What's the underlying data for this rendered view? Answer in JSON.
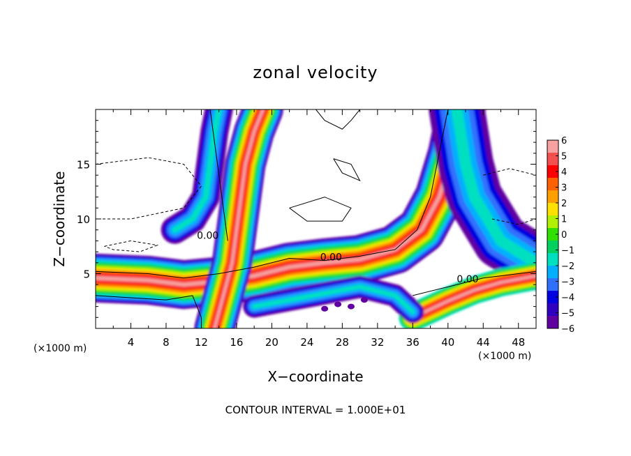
{
  "chart_data": {
    "type": "heatmap",
    "title": "zonal velocity",
    "xlabel": "X−coordinate",
    "ylabel": "Z−coordinate",
    "x_unit_label_left": "(×1000 m)",
    "x_unit_label_right": "(×1000 m)",
    "x_ticks": [
      4,
      8,
      12,
      16,
      20,
      24,
      28,
      32,
      36,
      40,
      44,
      48
    ],
    "y_ticks": [
      5,
      10,
      15
    ],
    "xlim": [
      0,
      50
    ],
    "ylim": [
      0,
      20
    ],
    "colorbar": {
      "ticks": [
        "6",
        "5",
        "4",
        "3",
        "2",
        "1",
        "0",
        "−1",
        "−2",
        "−3",
        "−4",
        "−5",
        "−6"
      ],
      "range": [
        -6,
        6
      ],
      "colors": [
        "#f7a1a1",
        "#f55050",
        "#ff0000",
        "#ff6000",
        "#ffa000",
        "#ffe000",
        "#b0f000",
        "#30e000",
        "#00d060",
        "#00e0c0",
        "#00b0ff",
        "#3070ff",
        "#0000e0",
        "#3000c0",
        "#6000a0"
      ]
    },
    "contour_labels": [
      "0.00",
      "0.00",
      "0.00"
    ],
    "note": "CONTOUR INTERVAL = 1.000E+01"
  }
}
